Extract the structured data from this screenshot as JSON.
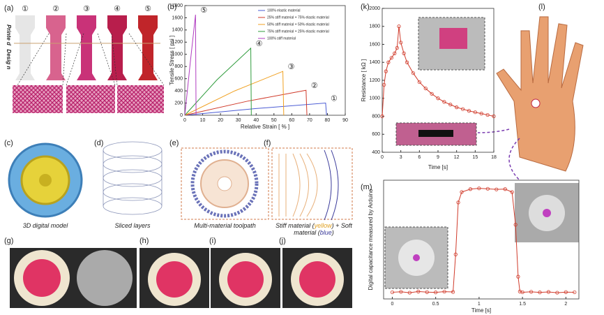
{
  "panels": {
    "labels": [
      "(a)",
      "(b)",
      "(k)",
      "(l)",
      "(c)",
      "(d)",
      "(e)",
      "(f)",
      "(g)",
      "(h)",
      "(i)",
      "(j)",
      "(m)"
    ],
    "specimens": [
      "①",
      "②",
      "③",
      "④",
      "⑤"
    ],
    "printed": "Printe d",
    "designed": "Desig n",
    "captions": [
      "3D digital model",
      "Sliced layers",
      "Multi-material toolpath"
    ],
    "material_caption": [
      "Stiff material (",
      "yellow",
      ") + Soft material (",
      "blue",
      ")"
    ]
  },
  "chart_data": [
    {
      "type": "line",
      "xlabel": "Relative Strain [ % ]",
      "ylabel": "Tensile Stress [ psi ]",
      "xlim": [
        0,
        90
      ],
      "ylim": [
        0,
        1800
      ],
      "xticks": [
        0,
        10,
        20,
        30,
        40,
        50,
        60,
        70,
        80,
        90
      ],
      "yticks": [
        0,
        200,
        400,
        600,
        800,
        1000,
        1200,
        1400,
        1600,
        1800
      ],
      "legend": "upper right",
      "series": [
        {
          "name": "100% elastic material",
          "color": "#4a5bd4",
          "annotation": "①",
          "x": [
            0,
            40,
            79,
            79.5
          ],
          "values": [
            0,
            110,
            200,
            0
          ]
        },
        {
          "name": "25% stiff material + 75% elastic material",
          "color": "#d03a2a",
          "annotation": "②",
          "x": [
            0,
            35,
            68,
            68.5
          ],
          "values": [
            0,
            230,
            410,
            0
          ]
        },
        {
          "name": "50% stiff material + 50% elastic material",
          "color": "#f0a020",
          "annotation": "③",
          "x": [
            0,
            28,
            55,
            55.5
          ],
          "values": [
            0,
            400,
            720,
            0
          ]
        },
        {
          "name": "75% stiff material + 25% elastic material",
          "color": "#2f9c3c",
          "annotation": "④",
          "x": [
            0,
            18,
            37,
            37.3
          ],
          "values": [
            0,
            580,
            1100,
            0
          ]
        },
        {
          "name": "100% stiff material",
          "color": "#b03cc0",
          "annotation": "⑤",
          "x": [
            0,
            3,
            6,
            6.3
          ],
          "values": [
            0,
            850,
            1650,
            0
          ]
        }
      ]
    },
    {
      "type": "line",
      "xlabel": "Time [s]",
      "ylabel": "Resistance [ kΩ ]",
      "xlim": [
        0,
        18
      ],
      "ylim": [
        400,
        2000
      ],
      "xticks": [
        0,
        3,
        6,
        9,
        12,
        15,
        18
      ],
      "yticks": [
        400,
        600,
        800,
        1000,
        1200,
        1400,
        1600,
        1800,
        2000
      ],
      "markers": true,
      "series": [
        {
          "color": "#d03a2a",
          "x": [
            0,
            0.3,
            0.6,
            1,
            1.5,
            2,
            2.4,
            2.7,
            3,
            3.5,
            4,
            5,
            6,
            7,
            8,
            9,
            10,
            11,
            12,
            13,
            14,
            15,
            16,
            17,
            18
          ],
          "values": [
            800,
            1150,
            1300,
            1400,
            1450,
            1500,
            1560,
            1800,
            1620,
            1500,
            1400,
            1280,
            1180,
            1110,
            1050,
            1000,
            960,
            930,
            900,
            880,
            860,
            845,
            830,
            815,
            800
          ]
        }
      ]
    },
    {
      "type": "line",
      "xlabel": "Time [s]",
      "ylabel": "Digital capacitance measured by Arduino",
      "xlim": [
        -0.1,
        2.15
      ],
      "ylim": [
        0,
        800
      ],
      "xticks": [
        0,
        0.5,
        1,
        1.5,
        2
      ],
      "markers": true,
      "series": [
        {
          "color": "#d03a2a",
          "x": [
            0,
            0.1,
            0.2,
            0.3,
            0.4,
            0.5,
            0.6,
            0.7,
            0.73,
            0.76,
            0.8,
            0.9,
            1.0,
            1.1,
            1.2,
            1.3,
            1.38,
            1.42,
            1.45,
            1.47,
            1.5,
            1.6,
            1.7,
            1.8,
            1.9,
            2.0,
            2.1
          ],
          "values": [
            45,
            48,
            42,
            50,
            46,
            44,
            49,
            47,
            300,
            650,
            720,
            740,
            745,
            742,
            738,
            740,
            720,
            500,
            150,
            50,
            45,
            48,
            44,
            47,
            42,
            46,
            45
          ]
        }
      ]
    }
  ]
}
